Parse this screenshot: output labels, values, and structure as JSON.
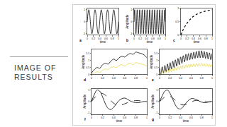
{
  "slide": {
    "title": "IMAGE OF RESULTS"
  },
  "chart_data": [
    {
      "type": "line",
      "panel": "a",
      "xlabel": "time",
      "grid": false,
      "x": [
        0,
        0.025,
        0.05,
        0.075,
        0.1,
        0.125,
        0.15,
        0.175,
        0.2,
        0.225,
        0.25,
        0.275,
        0.3,
        0.325,
        0.35,
        0.375,
        0.4,
        0.425,
        0.45,
        0.475,
        0.5,
        0.525,
        0.55,
        0.575,
        0.6,
        0.625,
        0.65,
        0.675,
        0.7,
        0.725,
        0.75,
        0.775,
        0.8,
        0.825,
        0.85,
        0.875,
        0.9,
        0.925,
        0.95,
        0.975,
        1
      ],
      "series": [
        {
          "color": "#000000",
          "line_style": "solid",
          "values": [
            0,
            0.71,
            1,
            0.71,
            0,
            -0.71,
            -1,
            -0.71,
            0,
            0.71,
            1,
            0.71,
            0,
            -0.71,
            -1,
            -0.71,
            0,
            0.71,
            1,
            0.71,
            0,
            -0.71,
            -1,
            -0.71,
            0,
            0.71,
            1,
            0.71,
            0,
            -0.71,
            -1,
            -0.71,
            0,
            0.71,
            1,
            0.71,
            0,
            -0.71,
            -1,
            -0.71,
            0
          ]
        }
      ],
      "xlim": [
        0,
        1
      ],
      "xticks": [
        0,
        0.2,
        0.4,
        0.6,
        0.8,
        1
      ],
      "ylim": [
        -1.1,
        1.1
      ],
      "yticks": [
        -1,
        0,
        1
      ]
    },
    {
      "type": "line",
      "panel": "b",
      "xlabel": "time",
      "ylabel": "Amplitude",
      "grid": false,
      "x": [
        0,
        0.02,
        0.04,
        0.06,
        0.08,
        0.1,
        0.12,
        0.14,
        0.16,
        0.18,
        0.2,
        0.22,
        0.24,
        0.26,
        0.28,
        0.3,
        0.32,
        0.34,
        0.36,
        0.38,
        0.4,
        0.42,
        0.44,
        0.46,
        0.48,
        0.5,
        0.52,
        0.54,
        0.56,
        0.58,
        0.6,
        0.62,
        0.64,
        0.66,
        0.68,
        0.7,
        0.72,
        0.74,
        0.76,
        0.78,
        0.8,
        0.82,
        0.84,
        0.86,
        0.88,
        0.9,
        0.92,
        0.94,
        0.96,
        0.98,
        1
      ],
      "series": [
        {
          "color": "#000000",
          "line_style": "solid",
          "values": [
            0,
            1,
            0,
            -1,
            0,
            1,
            0,
            -1,
            0,
            1,
            0,
            -1,
            0,
            1,
            0,
            -1,
            0,
            1,
            0,
            -1,
            0,
            1,
            0,
            -1,
            0,
            1,
            0,
            -1,
            0,
            1,
            0,
            -1,
            0,
            1,
            0,
            -1,
            0,
            1,
            0,
            -1,
            0,
            1,
            0,
            -1,
            0,
            1,
            0,
            -1,
            0,
            1,
            0
          ]
        }
      ],
      "xlim": [
        0,
        1
      ],
      "xticks": [
        0,
        0.2,
        0.4,
        0.6,
        0.8,
        1
      ],
      "ylim": [
        -1.1,
        1.1
      ],
      "yticks": [
        -1,
        0,
        1
      ]
    },
    {
      "type": "line",
      "panel": "c",
      "xlabel": "time",
      "grid": false,
      "x": [
        0,
        0.05,
        0.1,
        0.15,
        0.2,
        0.25,
        0.3,
        0.35,
        0.4,
        0.45,
        0.5,
        0.55,
        0.6,
        0.65,
        0.7,
        0.75,
        0.8,
        0.85,
        0.9,
        0.95,
        1
      ],
      "series": [
        {
          "color": "#000000",
          "line_style": "dotted",
          "values": [
            0,
            0.14,
            0.26,
            0.36,
            0.45,
            0.53,
            0.59,
            0.65,
            0.7,
            0.74,
            0.78,
            0.81,
            0.83,
            0.86,
            0.88,
            0.89,
            0.91,
            0.92,
            0.93,
            0.94,
            0.95
          ]
        }
      ],
      "xlim": [
        0,
        1
      ],
      "xticks": [
        0,
        0.2,
        0.4,
        0.6,
        0.8,
        1
      ],
      "ylim": [
        0,
        1
      ],
      "yticks": [
        0,
        0.5,
        1
      ]
    },
    {
      "type": "line",
      "panel": "d",
      "ylabel": "Amplitude",
      "grid": false,
      "x": [
        0,
        0.05,
        0.1,
        0.15,
        0.2,
        0.25,
        0.3,
        0.35,
        0.4,
        0.45,
        0.5,
        0.55,
        0.6,
        0.65,
        0.7,
        0.75,
        0.8,
        0.85,
        0.9,
        0.95,
        1
      ],
      "series": [
        {
          "color": "#000000",
          "line_style": "solid",
          "values": [
            0.1,
            0.35,
            0.5,
            0.45,
            0.7,
            0.8,
            0.75,
            0.95,
            1.1,
            1.0,
            1.2,
            1.3,
            1.25,
            1.4,
            1.5,
            1.45,
            1.6,
            1.55,
            1.5,
            1.4,
            1.2
          ]
        },
        {
          "color": "#e6d84a",
          "line_style": "solid",
          "values": [
            0,
            0.1,
            0.2,
            0.15,
            0.3,
            0.4,
            0.35,
            0.5,
            0.55,
            0.5,
            0.65,
            0.7,
            0.6,
            0.75,
            0.8,
            0.7,
            0.85,
            0.8,
            0.75,
            0.7,
            0.6
          ]
        }
      ],
      "xlim": [
        0,
        1
      ],
      "xticks": [
        0,
        0.2,
        0.4,
        0.6,
        0.8,
        1
      ],
      "ylim": [
        0,
        1.8
      ],
      "yticks": [
        0,
        0.5,
        1,
        1.5
      ]
    },
    {
      "type": "line",
      "panel": "e",
      "ylabel": "Amplitude",
      "grid": false,
      "x": [
        0,
        0.025,
        0.05,
        0.075,
        0.1,
        0.125,
        0.15,
        0.175,
        0.2,
        0.225,
        0.25,
        0.275,
        0.3,
        0.325,
        0.35,
        0.375,
        0.4,
        0.425,
        0.45,
        0.475,
        0.5,
        0.525,
        0.55,
        0.575,
        0.6,
        0.625,
        0.65,
        0.675,
        0.7,
        0.725,
        0.75,
        0.775,
        0.8,
        0.825,
        0.85,
        0.875,
        0.9,
        0.925,
        0.95,
        0.975,
        1
      ],
      "series": [
        {
          "color": "#000000",
          "line_style": "solid",
          "values": [
            0.45,
            0,
            0.55,
            0.1,
            0.65,
            0.2,
            0.75,
            0.3,
            0.85,
            0.4,
            0.95,
            0.5,
            1.05,
            0.6,
            1.15,
            0.7,
            1.25,
            0.8,
            1.35,
            0.9,
            1.45,
            1.0,
            1.5,
            1.05,
            1.55,
            1.1,
            1.6,
            1.15,
            1.65,
            1.2,
            1.7,
            1.2,
            1.7,
            1.2,
            1.65,
            1.15,
            1.6,
            1.1,
            1.55,
            1.05,
            1.5
          ]
        },
        {
          "color": "#e6d84a",
          "line_style": "solid",
          "values": [
            0.2,
            0,
            0.25,
            0.05,
            0.3,
            0.1,
            0.35,
            0.15,
            0.4,
            0.2,
            0.45,
            0.25,
            0.5,
            0.3,
            0.55,
            0.35,
            0.6,
            0.4,
            0.65,
            0.45,
            0.7,
            0.5,
            0.72,
            0.52,
            0.74,
            0.54,
            0.76,
            0.56,
            0.78,
            0.58,
            0.8,
            0.6,
            0.8,
            0.6,
            0.78,
            0.58,
            0.76,
            0.56,
            0.74,
            0.54,
            0.72
          ]
        }
      ],
      "xlim": [
        0,
        1
      ],
      "xticks": [
        0,
        0.2,
        0.4,
        0.6,
        0.8,
        1
      ],
      "ylim": [
        0,
        1.8
      ],
      "yticks": [
        0,
        0.5,
        1,
        1.5
      ]
    },
    {
      "type": "line",
      "panel": "f",
      "xlabel": "time",
      "ylabel": "Amplitude",
      "grid": false,
      "x": [
        0,
        0.05,
        0.1,
        0.15,
        0.2,
        0.25,
        0.3,
        0.35,
        0.4,
        0.45,
        0.5,
        0.55,
        0.6,
        0.65,
        0.7,
        0.75,
        0.8,
        0.85,
        0.9,
        0.95,
        1
      ],
      "series": [
        {
          "color": "#000000",
          "line_style": "solid",
          "values": [
            0,
            0.6,
            1.0,
            0.9,
            0.4,
            -0.2,
            -0.6,
            -0.7,
            -0.5,
            -0.2,
            0.1,
            0.25,
            0.3,
            0.2,
            0.05,
            -0.05,
            -0.1,
            -0.1,
            -0.05,
            0,
            0
          ]
        },
        {
          "color": "#000000",
          "line_style": "dashed",
          "values": [
            0,
            0.3,
            0.55,
            0.7,
            0.7,
            0.55,
            0.3,
            0.05,
            -0.15,
            -0.3,
            -0.35,
            -0.3,
            -0.2,
            -0.1,
            0,
            0.05,
            0.08,
            0.08,
            0.05,
            0.02,
            0
          ]
        }
      ],
      "xlim": [
        0,
        1
      ],
      "xticks": [
        0,
        0.2,
        0.4,
        0.6,
        0.8,
        1
      ],
      "ylim": [
        -1.1,
        1.1
      ],
      "yticks": [
        -1,
        0,
        1
      ]
    },
    {
      "type": "line",
      "panel": "g",
      "xlabel": "time",
      "ylabel": "Amplitude",
      "grid": false,
      "x": [
        0,
        0.05,
        0.1,
        0.15,
        0.2,
        0.25,
        0.3,
        0.35,
        0.4,
        0.45,
        0.5,
        0.55,
        0.6,
        0.65,
        0.7,
        0.75,
        0.8,
        0.85,
        0.9,
        0.95,
        1
      ],
      "series": [
        {
          "color": "#000000",
          "line_style": "solid",
          "values": [
            0,
            0.5,
            0.9,
            1.0,
            0.7,
            0.2,
            -0.3,
            -0.6,
            -0.65,
            -0.45,
            -0.15,
            0.1,
            0.25,
            0.25,
            0.15,
            0.05,
            -0.05,
            -0.1,
            -0.08,
            -0.03,
            0
          ]
        },
        {
          "color": "#000000",
          "line_style": "dashed",
          "values": [
            0,
            0.2,
            0.4,
            0.5,
            0.45,
            0.3,
            0.1,
            -0.1,
            -0.25,
            -0.3,
            -0.25,
            -0.15,
            -0.05,
            0.05,
            0.1,
            0.1,
            0.05,
            0,
            -0.03,
            -0.03,
            0
          ]
        }
      ],
      "xlim": [
        0,
        1
      ],
      "xticks": [
        0,
        0.2,
        0.4,
        0.6,
        0.8,
        1
      ],
      "ylim": [
        -1.1,
        1.1
      ],
      "yticks": [
        -1,
        0,
        1
      ]
    }
  ]
}
